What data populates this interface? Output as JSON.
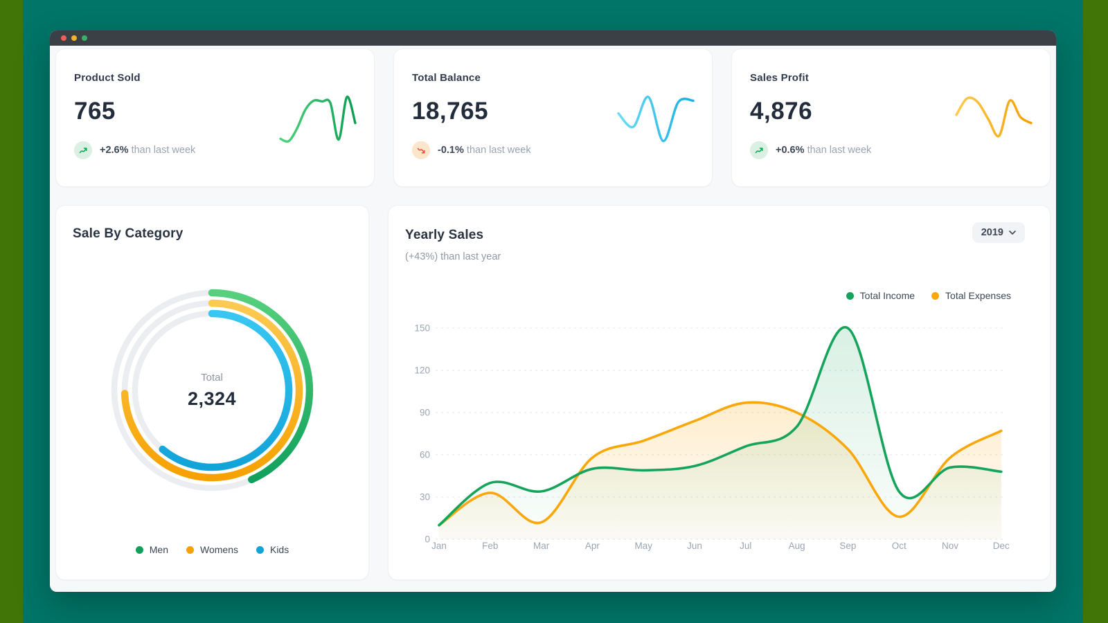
{
  "window": {
    "titlebar": {
      "close_color": "#ed5f57",
      "minimize_color": "#f0b32c",
      "maximize_color": "#3ab06d"
    }
  },
  "colors": {
    "backdrop_teal": "#007568",
    "backdrop_olive": "#427507",
    "grid_line": "#dfe3e9",
    "axis_text": "#9aa4b1"
  },
  "stats": [
    {
      "title": "Product Sold",
      "value": "765",
      "delta": "+2.6%",
      "delta_suffix": "than last week",
      "trend": "up"
    },
    {
      "title": "Total Balance",
      "value": "18,765",
      "delta": "-0.1%",
      "delta_suffix": "than last week",
      "trend": "down"
    },
    {
      "title": "Sales Profit",
      "value": "4,876",
      "delta": "+0.6%",
      "delta_suffix": "than last week",
      "trend": "up"
    }
  ],
  "category_card": {
    "title": "Sale By Category"
  },
  "yearly_card": {
    "title": "Yearly Sales",
    "subtitle": "(+43%) than last year",
    "year_selector": "2019"
  },
  "chart_data": [
    {
      "type": "line",
      "name": "product-sold-sparkline",
      "values": [
        6,
        3,
        20,
        45,
        57,
        56,
        54,
        5,
        62,
        27
      ],
      "color_start": "#4fd37d",
      "color_end": "#0d9e53"
    },
    {
      "type": "line",
      "name": "total-balance-sparkline",
      "values": [
        40,
        22,
        62,
        3,
        55,
        57
      ],
      "color_start": "#6adcf8",
      "color_end": "#19aede"
    },
    {
      "type": "line",
      "name": "sales-profit-sparkline",
      "values": [
        38,
        60,
        55,
        32,
        10,
        57,
        35,
        27
      ],
      "color_start": "#fdc94d",
      "color_end": "#f79f00"
    },
    {
      "type": "radial-bar",
      "name": "sale-by-category",
      "total_label": "Total",
      "total_value": "2,324",
      "track_color": "#ebedf0",
      "segments": [
        {
          "label": "Men",
          "sweep_deg": 156,
          "color": "#10a05c",
          "color_light": "#56d07c"
        },
        {
          "label": "Womens",
          "sweep_deg": 268,
          "color": "#f6a100",
          "color_light": "#fcca52"
        },
        {
          "label": "Kids",
          "sweep_deg": 220,
          "color": "#12a3d8",
          "color_light": "#38c7f2"
        }
      ]
    },
    {
      "type": "area-line",
      "name": "yearly-sales",
      "categories": [
        "Jan",
        "Feb",
        "Mar",
        "Apr",
        "May",
        "Jun",
        "Jul",
        "Aug",
        "Sep",
        "Oct",
        "Nov",
        "Dec"
      ],
      "yticks": [
        0,
        30,
        60,
        90,
        120,
        150
      ],
      "ylim": [
        0,
        150
      ],
      "legend_position": "top-right",
      "grid": "dashed-horizontal",
      "series": [
        {
          "name": "Total Income",
          "color": "#16a35b",
          "values": [
            10,
            40,
            34,
            50,
            49,
            52,
            66,
            80,
            150,
            34,
            51,
            48
          ]
        },
        {
          "name": "Total Expenses",
          "color": "#f9a70b",
          "values": [
            10,
            33,
            12,
            58,
            70,
            84,
            97,
            90,
            64,
            16,
            58,
            77
          ]
        }
      ]
    }
  ]
}
